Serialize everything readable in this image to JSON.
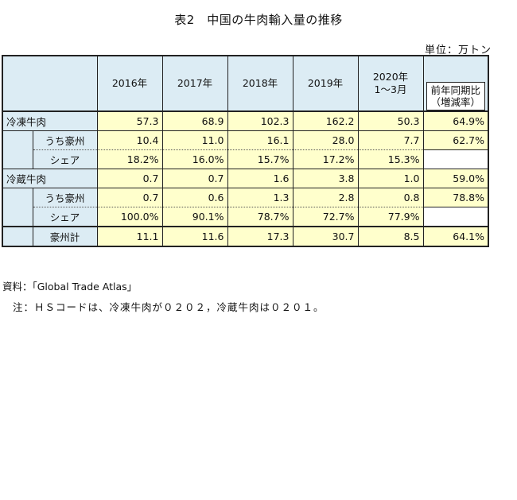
{
  "title": "表2　中国の牛肉輸入量の推移",
  "unit": "単位：万トン",
  "headers": {
    "years": [
      "2016年",
      "2017年",
      "2018年",
      "2019年"
    ],
    "period_line1": "2020年",
    "period_line2": "1～3月",
    "yoy_line1": "前年同期比",
    "yoy_line2": "（増減率）"
  },
  "rows": [
    {
      "label": "冷凍牛肉",
      "values": [
        "57.3",
        "68.9",
        "102.3",
        "162.2",
        "50.3",
        "64.9%"
      ]
    },
    {
      "label": "うち豪州",
      "values": [
        "10.4",
        "11.0",
        "16.1",
        "28.0",
        "7.7",
        "62.7%"
      ]
    },
    {
      "label": "シェア",
      "values": [
        "18.2%",
        "16.0%",
        "15.7%",
        "17.2%",
        "15.3%",
        ""
      ]
    },
    {
      "label": "冷蔵牛肉",
      "values": [
        "0.7",
        "0.7",
        "1.6",
        "3.8",
        "1.0",
        "59.0%"
      ]
    },
    {
      "label": "うち豪州",
      "values": [
        "0.7",
        "0.6",
        "1.3",
        "2.8",
        "0.8",
        "78.8%"
      ]
    },
    {
      "label": "シェア",
      "values": [
        "100.0%",
        "90.1%",
        "78.7%",
        "72.7%",
        "77.9%",
        ""
      ]
    },
    {
      "label": "豪州計",
      "values": [
        "11.1",
        "11.6",
        "17.3",
        "30.7",
        "8.5",
        "64.1%"
      ]
    }
  ],
  "source": "資料：「Global Trade Atlas」",
  "note": "注：ＨＳコードは、冷凍牛肉が０２０２，冷蔵牛肉は０２０１。",
  "colors": {
    "header_bg": "#dcecf4",
    "value_bg": "#ffffcc"
  }
}
